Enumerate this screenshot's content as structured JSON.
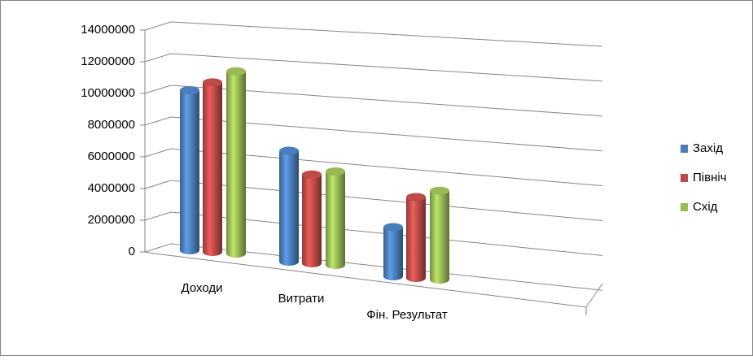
{
  "chart_data": {
    "type": "bar3d",
    "categories": [
      "Доходи",
      "Витрати",
      "Фін. Результат"
    ],
    "series": [
      {
        "name": "Захід",
        "color": "#4a7ebb",
        "values": [
          10100000,
          7000000,
          3100000
        ]
      },
      {
        "name": "Північ",
        "color": "#be4b48",
        "values": [
          10700000,
          5600000,
          5100000
        ]
      },
      {
        "name": "Схід",
        "color": "#98b954",
        "values": [
          11500000,
          5900000,
          5600000
        ]
      }
    ],
    "ylim": [
      0,
      14000000
    ],
    "yticks": [
      0,
      2000000,
      4000000,
      6000000,
      8000000,
      10000000,
      12000000,
      14000000
    ],
    "grid": true,
    "legend": "right"
  }
}
